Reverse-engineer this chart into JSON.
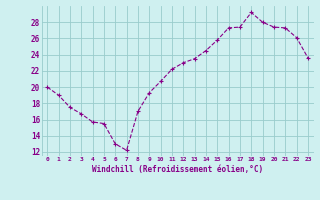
{
  "x": [
    0,
    1,
    2,
    3,
    4,
    5,
    6,
    7,
    8,
    9,
    10,
    11,
    12,
    13,
    14,
    15,
    16,
    17,
    18,
    19,
    20,
    21,
    22,
    23
  ],
  "y": [
    20.0,
    19.0,
    17.5,
    16.7,
    15.7,
    15.5,
    13.0,
    12.2,
    17.0,
    19.3,
    20.7,
    22.2,
    23.0,
    23.5,
    24.5,
    25.8,
    27.3,
    27.4,
    29.2,
    28.0,
    27.4,
    27.3,
    26.1,
    23.6
  ],
  "line_color": "#880088",
  "marker": "+",
  "marker_size": 3,
  "marker_lw": 0.8,
  "bg_color": "#cff0f0",
  "grid_color": "#99cccc",
  "xlabel": "Windchill (Refroidissement éolien,°C)",
  "xlabel_color": "#880088",
  "ylabel_ticks": [
    12,
    14,
    16,
    18,
    20,
    22,
    24,
    26,
    28
  ],
  "xlim": [
    -0.5,
    23.5
  ],
  "ylim": [
    11.5,
    30.0
  ],
  "xtick_labels": [
    "0",
    "1",
    "2",
    "3",
    "4",
    "5",
    "6",
    "7",
    "8",
    "9",
    "10",
    "11",
    "12",
    "13",
    "14",
    "15",
    "16",
    "17",
    "18",
    "19",
    "20",
    "21",
    "22",
    "23"
  ],
  "line_width": 0.8
}
